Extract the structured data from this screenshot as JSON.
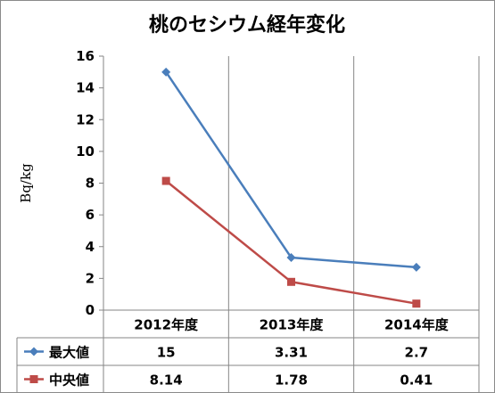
{
  "chart_data": {
    "type": "line",
    "title": "桃のセシウム経年変化",
    "ylabel": "Bq/kg",
    "xlabel": "",
    "categories": [
      "2012年度",
      "2013年度",
      "2014年度"
    ],
    "ylim": [
      0,
      16
    ],
    "yticks": [
      0,
      2,
      4,
      6,
      8,
      10,
      12,
      14,
      16
    ],
    "grid": false,
    "legend": "data-table",
    "series": [
      {
        "name": "最大値",
        "values": [
          15,
          3.31,
          2.7
        ],
        "color": "#4A7EBB",
        "marker": "diamond"
      },
      {
        "name": "中央値",
        "values": [
          8.14,
          1.78,
          0.41
        ],
        "color": "#BE4B48",
        "marker": "square"
      }
    ]
  }
}
